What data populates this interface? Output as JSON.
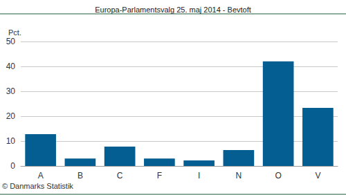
{
  "chart_data": {
    "type": "bar",
    "title": "Europa-Parlamentsvalg 25. maj 2014 - Bevtoft",
    "ylabel": "Pct.",
    "annotation": "© Danmarks Statistik",
    "categories": [
      "A",
      "B",
      "C",
      "F",
      "I",
      "N",
      "O",
      "V"
    ],
    "values": [
      12.8,
      3.0,
      7.8,
      3.0,
      2.2,
      6.4,
      42.0,
      23.3
    ],
    "color": "#045e91",
    "ylim": [
      0,
      50
    ],
    "yticks": [
      0,
      10,
      20,
      30,
      40,
      50
    ],
    "grid": true
  }
}
